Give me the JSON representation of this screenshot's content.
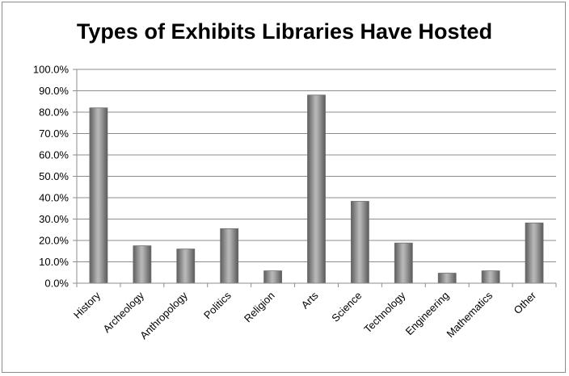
{
  "chart_data": {
    "type": "bar",
    "title": "Types of Exhibits Libraries Have Hosted",
    "categories": [
      "History",
      "Archeology",
      "Anthropology",
      "Politics",
      "Religion",
      "Arts",
      "Science",
      "Technology",
      "Engineering",
      "Mathematics",
      "Other"
    ],
    "values": [
      82.0,
      17.5,
      16.0,
      25.5,
      5.8,
      88.0,
      38.3,
      18.8,
      4.7,
      5.8,
      28.2
    ],
    "ylim": [
      0,
      100
    ],
    "y_tick_step": 10,
    "y_tick_format": "percent_1dp",
    "grid": true,
    "legend": "none",
    "bar_color": "#8c8c8c",
    "xlabel": "",
    "ylabel": ""
  }
}
